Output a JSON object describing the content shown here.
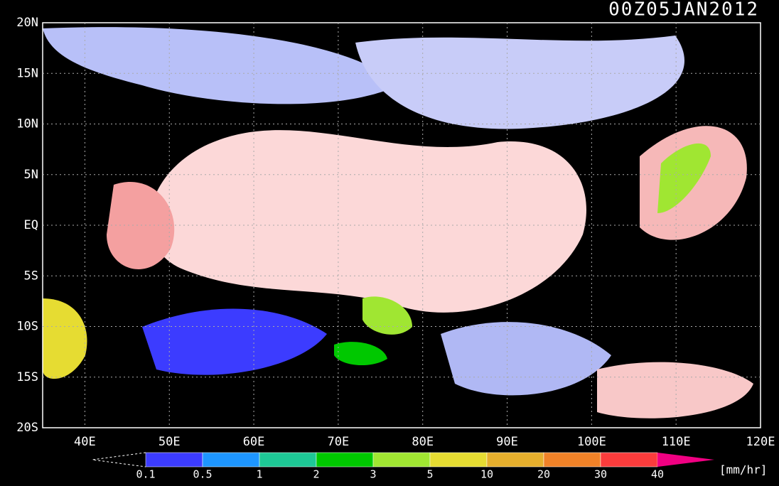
{
  "header": {
    "title": "00Z05JAN2012"
  },
  "map": {
    "lat_labels": [
      "20N",
      "15N",
      "10N",
      "5N",
      "EQ",
      "5S",
      "10S",
      "15S",
      "20S"
    ],
    "lon_labels": [
      "40E",
      "50E",
      "60E",
      "70E",
      "80E",
      "90E",
      "100E",
      "110E",
      "120E"
    ]
  },
  "colorbar": {
    "labels": [
      "0.1",
      "0.5",
      "1",
      "2",
      "3",
      "5",
      "10",
      "20",
      "30",
      "40"
    ],
    "colors": [
      "#3c3cff",
      "#1e96ff",
      "#1ec896",
      "#00c800",
      "#a0e632",
      "#e6dc32",
      "#e6af2d",
      "#f08228",
      "#fa3c3c"
    ],
    "over_color": "#f00082",
    "unit": "[mm/hr]"
  }
}
